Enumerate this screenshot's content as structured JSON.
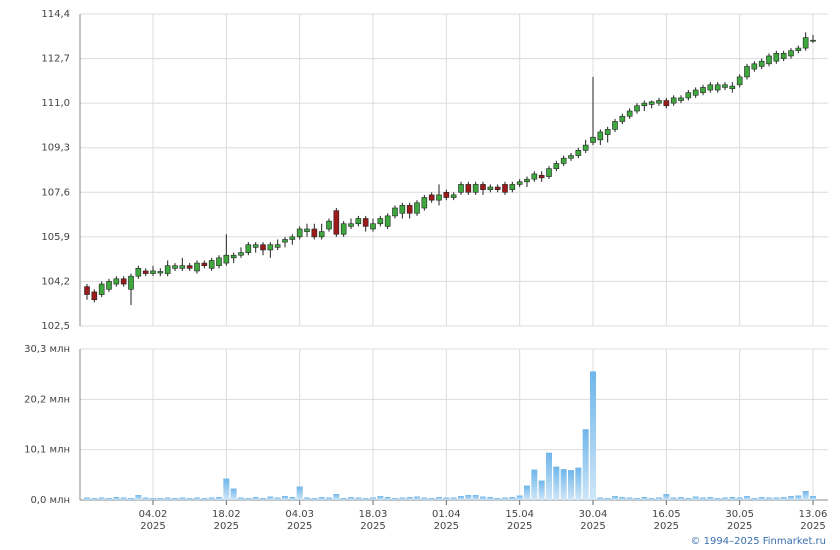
{
  "chart_data": {
    "type": "candlestick",
    "categories": [
      null,
      null,
      null,
      null,
      null,
      null,
      null,
      null,
      null,
      "04.02",
      null,
      null,
      null,
      null,
      null,
      null,
      null,
      null,
      null,
      "18.02",
      null,
      null,
      null,
      null,
      null,
      null,
      null,
      null,
      null,
      "04.03",
      null,
      null,
      null,
      null,
      null,
      null,
      null,
      null,
      null,
      "18.03",
      null,
      null,
      null,
      null,
      null,
      null,
      null,
      null,
      null,
      "01.04",
      null,
      null,
      null,
      null,
      null,
      null,
      null,
      null,
      null,
      "15.04",
      null,
      null,
      null,
      null,
      null,
      null,
      null,
      null,
      null,
      "30.04",
      null,
      null,
      null,
      null,
      null,
      null,
      null,
      null,
      null,
      "16.05",
      null,
      null,
      null,
      null,
      null,
      null,
      null,
      null,
      null,
      "30.05",
      null,
      null,
      null,
      null,
      null,
      null,
      null,
      null,
      null,
      "13.06"
    ],
    "year": "2025",
    "open": [
      104.0,
      103.8,
      103.7,
      103.9,
      104.1,
      104.3,
      103.9,
      104.4,
      104.6,
      104.5,
      104.52,
      104.5,
      104.7,
      104.7,
      104.8,
      104.6,
      104.9,
      104.7,
      104.8,
      104.9,
      105.1,
      105.2,
      105.3,
      105.5,
      105.6,
      105.4,
      105.5,
      105.7,
      105.8,
      105.9,
      106.1,
      106.2,
      105.9,
      106.2,
      106.9,
      106.0,
      106.3,
      106.4,
      106.6,
      106.2,
      106.4,
      106.3,
      106.7,
      106.8,
      107.1,
      106.8,
      107.0,
      107.5,
      107.3,
      107.6,
      107.4,
      107.6,
      107.9,
      107.6,
      107.9,
      107.7,
      107.8,
      107.9,
      107.7,
      107.9,
      108.0,
      108.1,
      108.25,
      108.2,
      108.5,
      108.7,
      108.9,
      109.0,
      109.2,
      109.5,
      109.6,
      109.8,
      110.0,
      110.3,
      110.5,
      110.7,
      110.9,
      110.95,
      111.0,
      111.1,
      111.0,
      111.1,
      111.2,
      111.3,
      111.4,
      111.5,
      111.5,
      111.6,
      111.55,
      111.7,
      112.0,
      112.3,
      112.4,
      112.5,
      112.6,
      112.7,
      112.8,
      113.0,
      113.1,
      113.4
    ],
    "high": [
      104.1,
      103.9,
      104.2,
      104.3,
      104.4,
      104.4,
      104.5,
      104.8,
      104.7,
      104.8,
      104.7,
      105.0,
      104.9,
      105.1,
      104.9,
      105.0,
      105.0,
      105.1,
      105.2,
      106.0,
      105.3,
      105.5,
      105.7,
      105.7,
      105.7,
      105.7,
      105.8,
      105.9,
      106.0,
      106.3,
      106.4,
      106.4,
      106.4,
      106.6,
      107.0,
      106.5,
      106.6,
      106.7,
      106.7,
      106.6,
      106.7,
      106.8,
      107.1,
      107.2,
      107.2,
      107.3,
      107.5,
      107.6,
      107.9,
      107.7,
      107.6,
      108.0,
      108.0,
      108.0,
      108.0,
      107.9,
      107.9,
      108.0,
      108.0,
      108.1,
      108.2,
      108.4,
      108.4,
      108.6,
      108.8,
      109.0,
      109.1,
      109.3,
      109.6,
      112.0,
      110.0,
      110.1,
      110.4,
      110.6,
      110.8,
      111.0,
      111.1,
      111.1,
      111.2,
      111.2,
      111.3,
      111.3,
      111.5,
      111.6,
      111.7,
      111.8,
      111.8,
      111.8,
      111.8,
      112.1,
      112.5,
      112.6,
      112.7,
      112.9,
      113.0,
      113.0,
      113.1,
      113.2,
      113.7,
      113.6
    ],
    "low": [
      103.5,
      103.4,
      103.6,
      103.8,
      104.0,
      104.0,
      103.3,
      104.3,
      104.4,
      104.4,
      104.4,
      104.4,
      104.6,
      104.6,
      104.6,
      104.5,
      104.7,
      104.6,
      104.7,
      104.8,
      104.9,
      105.1,
      105.2,
      105.3,
      105.2,
      105.1,
      105.4,
      105.5,
      105.6,
      105.8,
      105.9,
      105.8,
      105.8,
      106.1,
      105.9,
      105.9,
      106.2,
      106.3,
      106.1,
      106.1,
      106.3,
      106.2,
      106.6,
      106.6,
      106.6,
      106.7,
      106.9,
      107.2,
      107.1,
      107.3,
      107.3,
      107.5,
      107.5,
      107.5,
      107.5,
      107.6,
      107.6,
      107.5,
      107.6,
      107.8,
      107.8,
      108.0,
      108.0,
      108.1,
      108.4,
      108.6,
      108.8,
      108.9,
      109.1,
      109.4,
      109.4,
      109.5,
      109.9,
      110.2,
      110.4,
      110.6,
      110.7,
      110.8,
      110.9,
      110.8,
      110.9,
      111.0,
      111.1,
      111.2,
      111.3,
      111.4,
      111.4,
      111.5,
      111.4,
      111.6,
      111.9,
      112.2,
      112.3,
      112.4,
      112.5,
      112.6,
      112.7,
      112.9,
      113.0,
      113.3
    ],
    "close": [
      103.7,
      103.5,
      104.1,
      104.2,
      104.3,
      104.1,
      104.4,
      104.7,
      104.5,
      104.6,
      104.58,
      104.8,
      104.8,
      104.8,
      104.7,
      104.9,
      104.8,
      105.0,
      105.1,
      105.2,
      105.2,
      105.3,
      105.6,
      105.6,
      105.4,
      105.6,
      105.6,
      105.8,
      105.9,
      106.2,
      106.2,
      105.9,
      106.1,
      106.5,
      106.0,
      106.4,
      106.4,
      106.6,
      106.3,
      106.4,
      106.6,
      106.7,
      107.0,
      107.1,
      106.8,
      107.2,
      107.4,
      107.3,
      107.5,
      107.4,
      107.5,
      107.9,
      107.6,
      107.9,
      107.7,
      107.8,
      107.7,
      107.6,
      107.9,
      108.0,
      108.1,
      108.3,
      108.15,
      108.5,
      108.7,
      108.9,
      109.0,
      109.2,
      109.4,
      109.7,
      109.9,
      110.0,
      110.3,
      110.5,
      110.7,
      110.9,
      111.0,
      111.05,
      111.1,
      110.9,
      111.2,
      111.2,
      111.4,
      111.5,
      111.6,
      111.7,
      111.7,
      111.7,
      111.65,
      112.0,
      112.4,
      112.5,
      112.6,
      112.8,
      112.9,
      112.9,
      113.0,
      113.1,
      113.5,
      113.4
    ],
    "up_color": "#3ea83e",
    "down_color": "#9c1a1a",
    "ylim": [
      102.5,
      114.4
    ],
    "yticks": [
      {
        "value": 102.5,
        "label": "102,5"
      },
      {
        "value": 104.2,
        "label": "104,2"
      },
      {
        "value": 105.9,
        "label": "105,9"
      },
      {
        "value": 107.6,
        "label": "107,6"
      },
      {
        "value": 109.3,
        "label": "109,3"
      },
      {
        "value": 111.0,
        "label": "111,0"
      },
      {
        "value": 112.7,
        "label": "112,7"
      },
      {
        "value": 114.4,
        "label": "114,4"
      }
    ],
    "grid": true,
    "volume": {
      "values": [
        0.5,
        0.4,
        0.5,
        0.4,
        0.6,
        0.5,
        0.4,
        1.0,
        0.5,
        0.4,
        0.4,
        0.5,
        0.4,
        0.5,
        0.4,
        0.5,
        0.4,
        0.5,
        0.6,
        4.3,
        2.3,
        0.5,
        0.4,
        0.6,
        0.4,
        0.7,
        0.5,
        0.8,
        0.6,
        2.7,
        0.5,
        0.4,
        0.6,
        0.5,
        1.2,
        0.4,
        0.6,
        0.5,
        0.4,
        0.5,
        0.8,
        0.6,
        0.4,
        0.5,
        0.6,
        0.7,
        0.5,
        0.4,
        0.6,
        0.5,
        0.5,
        0.8,
        1.0,
        1.0,
        0.7,
        0.6,
        0.4,
        0.5,
        0.6,
        0.9,
        2.9,
        6.1,
        3.9,
        9.5,
        6.7,
        6.2,
        6.0,
        6.5,
        14.2,
        25.8,
        0.5,
        0.4,
        0.8,
        0.6,
        0.5,
        0.4,
        0.6,
        0.4,
        0.5,
        1.2,
        0.5,
        0.6,
        0.4,
        0.7,
        0.5,
        0.6,
        0.4,
        0.5,
        0.6,
        0.5,
        0.8,
        0.4,
        0.6,
        0.5,
        0.5,
        0.6,
        0.8,
        0.9,
        1.8,
        0.8
      ],
      "color": "#8cc6ee",
      "ylim": [
        0,
        30.3
      ],
      "yticks": [
        {
          "value": 0,
          "label": "0,0 млн"
        },
        {
          "value": 10.1,
          "label": "10,1 млн"
        },
        {
          "value": 20.2,
          "label": "20,2 млн"
        },
        {
          "value": 30.3,
          "label": "30,3 млн"
        }
      ]
    },
    "copyright": "© 1994–2025 Finmarket.ru"
  }
}
